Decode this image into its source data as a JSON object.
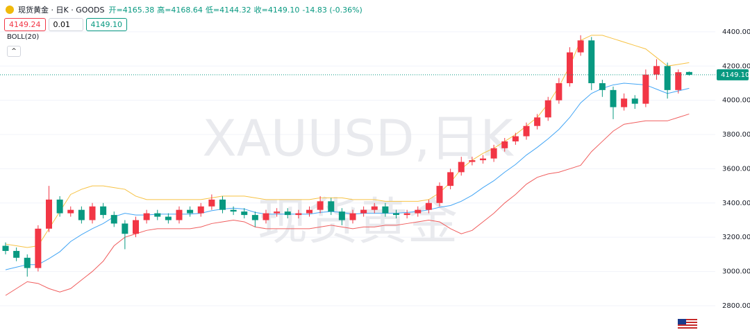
{
  "chart_data": {
    "type": "candlestick",
    "symbol": "现货黄金 · 日K · GOODS",
    "legend_values": [
      "开=4165.38",
      "高=4168.64",
      "低=4144.32",
      "收=4149.10",
      "-14.83 (-0.36%)"
    ],
    "bid": "4149.24",
    "lot": "0.01",
    "ask": "4149.10",
    "indicator": "BOLL(20)",
    "watermark": [
      "XAUUSD,日K",
      "现货黄金"
    ],
    "up_color": "#f23645",
    "down_color": "#089981",
    "last_price": {
      "value": 4149.1,
      "label": "4149.10"
    },
    "ylim": [
      2658,
      4586
    ],
    "yticks": [
      {
        "value": 2800,
        "label": "2800.00"
      },
      {
        "value": 3000,
        "label": "3000.00"
      },
      {
        "value": 3200,
        "label": "3200.00"
      },
      {
        "value": 3400,
        "label": "3400.00"
      },
      {
        "value": 3600,
        "label": "3600.00"
      },
      {
        "value": 3800,
        "label": "3800.00"
      },
      {
        "value": 4000,
        "label": "4000.00"
      },
      {
        "value": 4200,
        "label": "4200.00"
      },
      {
        "value": 4400,
        "label": "4400.00"
      }
    ],
    "grid": true,
    "open": [
      3150,
      3120,
      3080,
      3020,
      3250,
      3420,
      3340,
      3360,
      3300,
      3380,
      3330,
      3280,
      3220,
      3300,
      3340,
      3320,
      3300,
      3360,
      3340,
      3380,
      3420,
      3360,
      3350,
      3330,
      3300,
      3340,
      3350,
      3330,
      3340,
      3360,
      3410,
      3350,
      3300,
      3340,
      3360,
      3380,
      3340,
      3330,
      3340,
      3360,
      3400,
      3500,
      3580,
      3640,
      3650,
      3660,
      3720,
      3760,
      3790,
      3850,
      3900,
      4000,
      4100,
      4280,
      4350,
      4100,
      4060,
      3960,
      4010,
      3980,
      4150,
      4200,
      4060,
      4165.38
    ],
    "high": [
      3170,
      3140,
      3100,
      3270,
      3500,
      3440,
      3380,
      3380,
      3400,
      3400,
      3350,
      3300,
      3320,
      3360,
      3360,
      3340,
      3380,
      3380,
      3400,
      3450,
      3440,
      3380,
      3370,
      3350,
      3360,
      3370,
      3370,
      3360,
      3380,
      3440,
      3430,
      3370,
      3360,
      3380,
      3400,
      3400,
      3360,
      3360,
      3380,
      3420,
      3520,
      3600,
      3670,
      3670,
      3680,
      3740,
      3780,
      3810,
      3870,
      3920,
      4020,
      4130,
      4310,
      4380,
      4370,
      4120,
      4080,
      4040,
      4030,
      4180,
      4240,
      4220,
      4180,
      4168.64
    ],
    "low": [
      3100,
      3060,
      2970,
      3000,
      3230,
      3320,
      3320,
      3280,
      3280,
      3310,
      3260,
      3130,
      3200,
      3280,
      3300,
      3280,
      3280,
      3320,
      3320,
      3360,
      3340,
      3330,
      3310,
      3260,
      3280,
      3320,
      3310,
      3310,
      3320,
      3340,
      3330,
      3270,
      3280,
      3320,
      3340,
      3320,
      3310,
      3310,
      3320,
      3340,
      3380,
      3480,
      3560,
      3620,
      3630,
      3640,
      3700,
      3740,
      3770,
      3830,
      3880,
      3980,
      4080,
      4260,
      4060,
      4020,
      3890,
      3940,
      3950,
      3960,
      4120,
      4010,
      4040,
      4144.32
    ],
    "close": [
      3120,
      3080,
      3020,
      3250,
      3420,
      3340,
      3360,
      3300,
      3380,
      3330,
      3280,
      3220,
      3300,
      3340,
      3320,
      3300,
      3360,
      3340,
      3380,
      3420,
      3360,
      3350,
      3330,
      3300,
      3340,
      3350,
      3330,
      3340,
      3360,
      3410,
      3350,
      3300,
      3340,
      3360,
      3380,
      3340,
      3330,
      3340,
      3360,
      3400,
      3500,
      3580,
      3640,
      3650,
      3660,
      3720,
      3760,
      3790,
      3850,
      3900,
      4000,
      4100,
      4280,
      4350,
      4100,
      4060,
      3960,
      4010,
      3980,
      4150,
      4200,
      4060,
      4163.93,
      4149.1
    ],
    "series": [
      {
        "color": "#f7c243",
        "values": [
          3160,
          3150,
          3140,
          3150,
          3250,
          3350,
          3450,
          3480,
          3500,
          3500,
          3490,
          3480,
          3440,
          3420,
          3420,
          3420,
          3420,
          3420,
          3420,
          3430,
          3440,
          3440,
          3440,
          3430,
          3420,
          3420,
          3420,
          3420,
          3420,
          3430,
          3430,
          3430,
          3420,
          3420,
          3420,
          3410,
          3410,
          3410,
          3410,
          3420,
          3460,
          3520,
          3600,
          3650,
          3690,
          3720,
          3760,
          3800,
          3850,
          3900,
          3980,
          4080,
          4200,
          4350,
          4380,
          4380,
          4360,
          4340,
          4320,
          4300,
          4250,
          4200,
          4210,
          4220
        ]
      },
      {
        "color": "#42a5f5",
        "values": [
          3010,
          3025,
          3040,
          3040,
          3075,
          3115,
          3175,
          3215,
          3250,
          3280,
          3320,
          3340,
          3330,
          3330,
          3335,
          3335,
          3335,
          3335,
          3340,
          3355,
          3365,
          3370,
          3365,
          3345,
          3335,
          3335,
          3335,
          3335,
          3335,
          3345,
          3350,
          3345,
          3335,
          3340,
          3340,
          3340,
          3340,
          3345,
          3350,
          3360,
          3375,
          3385,
          3410,
          3445,
          3490,
          3530,
          3580,
          3625,
          3680,
          3725,
          3775,
          3830,
          3900,
          3985,
          4040,
          4070,
          4090,
          4100,
          4095,
          4090,
          4065,
          4040,
          4055,
          4070
        ]
      },
      {
        "color": "#f05d5d",
        "values": [
          2860,
          2900,
          2940,
          2930,
          2900,
          2880,
          2900,
          2950,
          3000,
          3060,
          3150,
          3200,
          3220,
          3240,
          3250,
          3250,
          3250,
          3250,
          3260,
          3280,
          3290,
          3300,
          3290,
          3260,
          3250,
          3250,
          3250,
          3250,
          3250,
          3260,
          3270,
          3260,
          3250,
          3260,
          3260,
          3270,
          3270,
          3280,
          3290,
          3300,
          3290,
          3250,
          3220,
          3240,
          3290,
          3340,
          3400,
          3450,
          3510,
          3550,
          3570,
          3580,
          3600,
          3620,
          3700,
          3760,
          3820,
          3860,
          3870,
          3880,
          3880,
          3880,
          3900,
          3920
        ]
      }
    ]
  }
}
